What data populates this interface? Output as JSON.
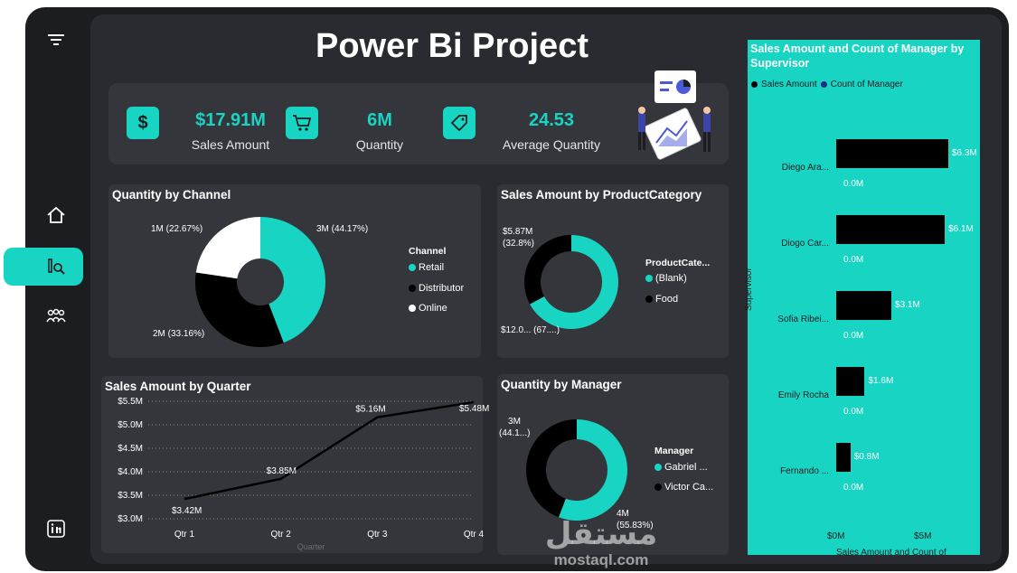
{
  "title": "Power Bi Project",
  "sidebar": {
    "items": [
      {
        "icon": "filter-icon"
      },
      {
        "icon": "home-icon"
      },
      {
        "icon": "report-icon",
        "active": true
      },
      {
        "icon": "people-icon"
      },
      {
        "icon": "linkedin-icon"
      }
    ]
  },
  "kpis": [
    {
      "icon": "dollar-icon",
      "glyph": "$",
      "value": "$17.91M",
      "label": "Sales Amount"
    },
    {
      "icon": "cart-icon",
      "glyph": "🛒",
      "value": "6M",
      "label": "Quantity"
    },
    {
      "icon": "tag-icon",
      "glyph": "🏷",
      "value": "24.53",
      "label": "Average Quantity"
    }
  ],
  "colors": {
    "accent": "#17d4c3",
    "dark": "#000000",
    "light": "#ffffff",
    "panel": "#35363c"
  },
  "charts": {
    "channel": {
      "title": "Quantity by Channel",
      "legend_title": "Channel",
      "legend": [
        "Retail",
        "Distributor",
        "Online"
      ],
      "labels": {
        "retail": "3M (44.17%)",
        "distributor": "2M (33.16%)",
        "online": "1M (22.67%)"
      }
    },
    "category": {
      "title": "Sales Amount by ProductCategory",
      "legend_title": "ProductCate...",
      "legend": [
        "(Blank)",
        "Food"
      ],
      "labels": {
        "food": "$5.87M\n(32.8%)",
        "blank": "$12.0... (67....)"
      }
    },
    "quarter": {
      "title": "Sales Amount by Quarter",
      "xlabel": "Quarter",
      "yticks": [
        "$5.5M",
        "$5.0M",
        "$4.5M",
        "$4.0M",
        "$3.5M",
        "$3.0M"
      ],
      "xticks": [
        "Qtr 1",
        "Qtr 2",
        "Qtr 3",
        "Qtr 4"
      ],
      "point_labels": [
        "$3.42M",
        "$3.85M",
        "$5.16M",
        "$5.48M"
      ]
    },
    "manager": {
      "title": "Quantity by Manager",
      "legend_title": "Manager",
      "legend": [
        "Gabriel ...",
        "Victor Ca..."
      ],
      "labels": {
        "victor": "3M\n(44.1...)",
        "gabriel": "4M\n(55.83%)"
      }
    },
    "supervisor": {
      "title": "Sales Amount and Count of Manager by Supervisor",
      "legend": [
        "Sales Amount",
        "Count of Manager"
      ],
      "ylabel": "Supervisor",
      "xlabel": "Sales Amount and Count of",
      "xticks": [
        "$0M",
        "$5M"
      ],
      "rows": [
        {
          "name": "Diego Ara...",
          "label": "$6.3M",
          "zero": "0.0M"
        },
        {
          "name": "Diogo Car...",
          "label": "$6.1M",
          "zero": "0.0M"
        },
        {
          "name": "Sofia Ribei...",
          "label": "$3.1M",
          "zero": "0.0M"
        },
        {
          "name": "Emily Rocha",
          "label": "$1.6M",
          "zero": "0.0M"
        },
        {
          "name": "Fernando ...",
          "label": "$0.8M",
          "zero": "0.0M"
        }
      ]
    }
  },
  "chart_data": [
    {
      "type": "pie",
      "title": "Quantity by Channel",
      "legend_title": "Channel",
      "categories": [
        "Retail",
        "Distributor",
        "Online"
      ],
      "values": [
        44.17,
        33.16,
        22.67
      ],
      "colors": [
        "#17d4c3",
        "#000000",
        "#ffffff"
      ]
    },
    {
      "type": "pie",
      "title": "Sales Amount by ProductCategory",
      "legend_title": "ProductCate...",
      "categories": [
        "(Blank)",
        "Food"
      ],
      "values": [
        67.2,
        32.8
      ],
      "colors": [
        "#17d4c3",
        "#000000"
      ]
    },
    {
      "type": "line",
      "title": "Sales Amount by Quarter",
      "xlabel": "Quarter",
      "x": [
        "Qtr 1",
        "Qtr 2",
        "Qtr 3",
        "Qtr 4"
      ],
      "values": [
        3.42,
        3.85,
        5.16,
        5.48
      ],
      "ylim": [
        3.0,
        5.5
      ]
    },
    {
      "type": "pie",
      "title": "Quantity by Manager",
      "legend_title": "Manager",
      "categories": [
        "Gabriel ...",
        "Victor Ca..."
      ],
      "values": [
        55.83,
        44.17
      ],
      "colors": [
        "#17d4c3",
        "#000000"
      ]
    },
    {
      "type": "bar",
      "title": "Sales Amount and Count of Manager by Supervisor",
      "ylabel": "Supervisor",
      "categories": [
        "Diego Ara...",
        "Diogo Car...",
        "Sofia Ribei...",
        "Emily Rocha",
        "Fernando ..."
      ],
      "series": [
        {
          "name": "Sales Amount",
          "values": [
            6.3,
            6.1,
            3.1,
            1.6,
            0.8
          ]
        },
        {
          "name": "Count of Manager",
          "values": [
            0.0,
            0.0,
            0.0,
            0.0,
            0.0
          ]
        }
      ],
      "xlim": [
        0,
        7
      ]
    }
  ],
  "watermark": {
    "arabic": "مستقل",
    "latin": "mostaql.com"
  }
}
